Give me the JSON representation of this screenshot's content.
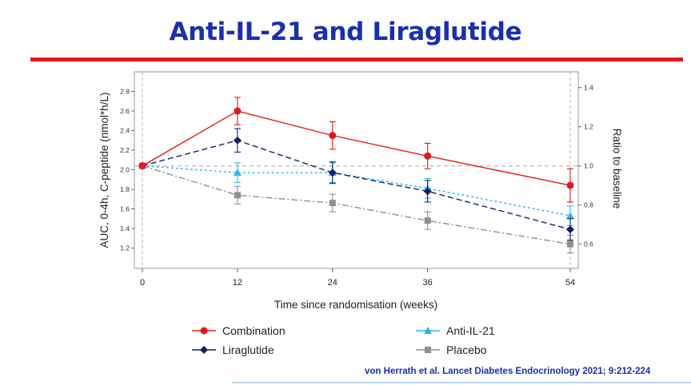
{
  "slide": {
    "title": "Anti-IL-21 and Liraglutide",
    "citation": "von Herrath  et al. Lancet Diabetes Endocrinology 2021; 9:212-224"
  },
  "colors": {
    "title": "#1a2fb0",
    "rule": "#e01b1b",
    "combination": "#e01b1b",
    "liraglutide": "#14206a",
    "anti_il21": "#2ab8ea",
    "placebo": "#8f8f8f"
  },
  "chart_data": {
    "type": "line",
    "xlabel": "Time since randomisation (weeks)",
    "ylabel": "AUC, 0-4h, C-peptide (nmol*h/L)",
    "y2label": "Ratio to baseline",
    "x": [
      0,
      12,
      24,
      36,
      54
    ],
    "xlim": [
      0,
      54
    ],
    "ylim": [
      1.0,
      3.0
    ],
    "yticks": [
      "1.2",
      "1.4",
      "1.6",
      "1.8",
      "2.0",
      "2.2",
      "2.4",
      "2.6",
      "2.8"
    ],
    "y2lim": [
      0.49,
      1.47
    ],
    "y2ticks": [
      "0.6",
      "0.8",
      "1.0",
      "1.2",
      "1.4"
    ],
    "reference_line_y2": 1.0,
    "grid": false,
    "legend_position": "bottom",
    "series": [
      {
        "name": "Combination",
        "key": "combination",
        "marker": "circle",
        "dash": "solid",
        "values": [
          2.04,
          2.6,
          2.35,
          2.14,
          1.84
        ],
        "error": [
          0,
          0.14,
          0.14,
          0.13,
          0.17
        ]
      },
      {
        "name": "Anti-IL-21",
        "key": "anti_il21",
        "marker": "triangle",
        "dash": "dotted",
        "values": [
          2.04,
          1.97,
          1.97,
          1.81,
          1.53
        ],
        "error": [
          0,
          0.1,
          0.1,
          0.1,
          0.1
        ]
      },
      {
        "name": "Liraglutide",
        "key": "liraglutide",
        "marker": "diamond",
        "dash": "dashed",
        "values": [
          2.04,
          2.3,
          1.97,
          1.78,
          1.39
        ],
        "error": [
          0,
          0.12,
          0.11,
          0.11,
          0.11
        ]
      },
      {
        "name": "Placebo",
        "key": "placebo",
        "marker": "square",
        "dash": "dashdot",
        "values": [
          2.04,
          1.74,
          1.66,
          1.48,
          1.24
        ],
        "error": [
          0,
          0.09,
          0.09,
          0.09,
          0.09
        ]
      }
    ]
  }
}
